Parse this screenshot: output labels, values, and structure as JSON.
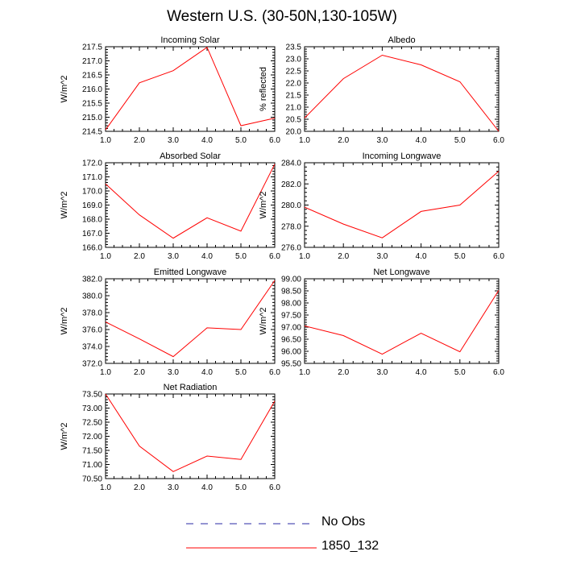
{
  "figure": {
    "title": "Western U.S. (30-50N,130-105W)"
  },
  "legend": [
    {
      "label": "No Obs",
      "color": "#2a2aa5",
      "style": "dashed"
    },
    {
      "label": "1850_132",
      "color": "#ff0000",
      "style": "solid"
    }
  ],
  "chart_data": [
    {
      "type": "line",
      "title": "Incoming Solar",
      "xlabel": "",
      "ylabel": "W/m^2",
      "xlim": [
        1,
        6
      ],
      "ylim": [
        214.5,
        217.5
      ],
      "x_ticks": [
        "1.0",
        "2.0",
        "3.0",
        "4.0",
        "5.0",
        "6.0"
      ],
      "y_ticks": [
        "214.5",
        "215.0",
        "215.5",
        "216.0",
        "216.5",
        "217.0",
        "217.5"
      ],
      "x": [
        1,
        2,
        3,
        4,
        5,
        6
      ],
      "series": [
        {
          "name": "1850_132",
          "values": [
            214.55,
            216.22,
            216.65,
            217.48,
            214.7,
            214.97
          ]
        }
      ]
    },
    {
      "type": "line",
      "title": "Albedo",
      "xlabel": "",
      "ylabel": "% reflected",
      "xlim": [
        1,
        6
      ],
      "ylim": [
        20.0,
        23.5
      ],
      "x_ticks": [
        "1.0",
        "2.0",
        "3.0",
        "4.0",
        "5.0",
        "6.0"
      ],
      "y_ticks": [
        "20.0",
        "20.5",
        "21.0",
        "21.5",
        "22.0",
        "22.5",
        "23.0",
        "23.5"
      ],
      "x": [
        1,
        2,
        3,
        4,
        5,
        6
      ],
      "series": [
        {
          "name": "1850_132",
          "values": [
            20.55,
            22.18,
            23.15,
            22.75,
            22.05,
            20.0
          ]
        }
      ]
    },
    {
      "type": "line",
      "title": "Absorbed Solar",
      "xlabel": "",
      "ylabel": "W/m^2",
      "xlim": [
        1,
        6
      ],
      "ylim": [
        166.0,
        172.0
      ],
      "x_ticks": [
        "1.0",
        "2.0",
        "3.0",
        "4.0",
        "5.0",
        "6.0"
      ],
      "y_ticks": [
        "166.0",
        "167.0",
        "168.0",
        "169.0",
        "170.0",
        "171.0",
        "172.0"
      ],
      "x": [
        1,
        2,
        3,
        4,
        5,
        6
      ],
      "series": [
        {
          "name": "1850_132",
          "values": [
            170.5,
            168.3,
            166.65,
            168.1,
            167.15,
            171.9
          ]
        }
      ]
    },
    {
      "type": "line",
      "title": "Incoming Longwave",
      "xlabel": "",
      "ylabel": "W/m^2",
      "xlim": [
        1,
        6
      ],
      "ylim": [
        276.0,
        284.0
      ],
      "x_ticks": [
        "1.0",
        "2.0",
        "3.0",
        "4.0",
        "5.0",
        "6.0"
      ],
      "y_ticks": [
        "276.0",
        "278.0",
        "280.0",
        "282.0",
        "284.0"
      ],
      "x": [
        1,
        2,
        3,
        4,
        5,
        6
      ],
      "series": [
        {
          "name": "1850_132",
          "values": [
            279.8,
            278.2,
            276.9,
            279.4,
            280.0,
            283.2
          ]
        }
      ]
    },
    {
      "type": "line",
      "title": "Emitted Longwave",
      "xlabel": "",
      "ylabel": "W/m^2",
      "xlim": [
        1,
        6
      ],
      "ylim": [
        372.0,
        382.0
      ],
      "x_ticks": [
        "1.0",
        "2.0",
        "3.0",
        "4.0",
        "5.0",
        "6.0"
      ],
      "y_ticks": [
        "372.0",
        "374.0",
        "376.0",
        "378.0",
        "380.0",
        "382.0"
      ],
      "x": [
        1,
        2,
        3,
        4,
        5,
        6
      ],
      "series": [
        {
          "name": "1850_132",
          "values": [
            376.9,
            374.9,
            372.8,
            376.2,
            376.0,
            381.8
          ]
        }
      ]
    },
    {
      "type": "line",
      "title": "Net Longwave",
      "xlabel": "",
      "ylabel": "W/m^2",
      "xlim": [
        1,
        6
      ],
      "ylim": [
        95.5,
        99.0
      ],
      "x_ticks": [
        "1.0",
        "2.0",
        "3.0",
        "4.0",
        "5.0",
        "6.0"
      ],
      "y_ticks": [
        "95.50",
        "96.00",
        "96.50",
        "97.00",
        "97.50",
        "98.00",
        "98.50",
        "99.00"
      ],
      "x": [
        1,
        2,
        3,
        4,
        5,
        6
      ],
      "series": [
        {
          "name": "1850_132",
          "values": [
            97.05,
            96.65,
            95.88,
            96.75,
            95.98,
            98.52
          ]
        }
      ]
    },
    {
      "type": "line",
      "title": "Net Radiation",
      "xlabel": "",
      "ylabel": "W/m^2",
      "xlim": [
        1,
        6
      ],
      "ylim": [
        70.5,
        73.5
      ],
      "x_ticks": [
        "1.0",
        "2.0",
        "3.0",
        "4.0",
        "5.0",
        "6.0"
      ],
      "y_ticks": [
        "70.50",
        "71.00",
        "71.50",
        "72.00",
        "72.50",
        "73.00",
        "73.50"
      ],
      "x": [
        1,
        2,
        3,
        4,
        5,
        6
      ],
      "series": [
        {
          "name": "1850_132",
          "values": [
            73.5,
            71.65,
            70.75,
            71.3,
            71.18,
            73.25
          ]
        }
      ]
    }
  ]
}
